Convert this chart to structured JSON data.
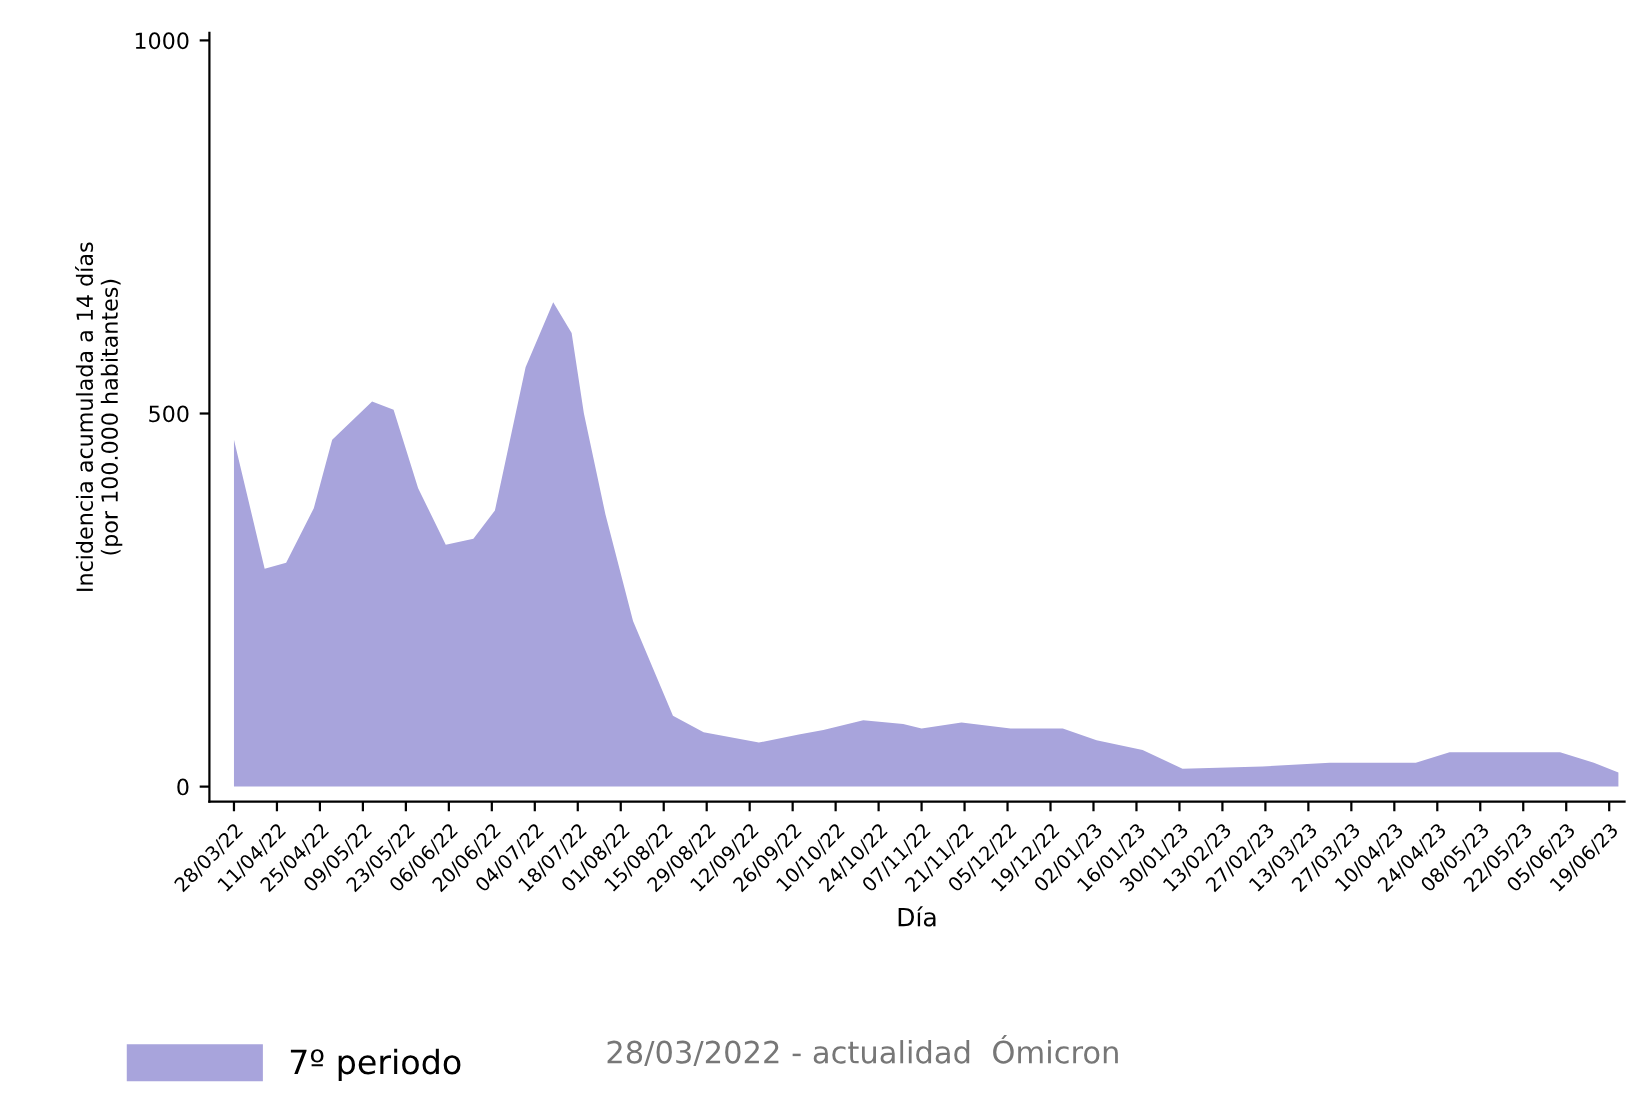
{
  "chart_data": {
    "type": "area",
    "xlabel": "Día",
    "ylabel": "Incidencia acumulada a 14 días\n(por 100.000 habitantes)",
    "x": [
      "2022-03-28",
      "2022-04-07",
      "2022-04-14",
      "2022-04-23",
      "2022-04-29",
      "2022-05-12",
      "2022-05-19",
      "2022-05-27",
      "2022-06-05",
      "2022-06-14",
      "2022-06-21",
      "2022-07-01",
      "2022-07-10",
      "2022-07-16",
      "2022-07-20",
      "2022-07-27",
      "2022-08-05",
      "2022-08-18",
      "2022-08-28",
      "2022-09-15",
      "2022-09-28",
      "2022-10-06",
      "2022-10-19",
      "2022-11-01",
      "2022-11-07",
      "2022-11-20",
      "2022-12-06",
      "2022-12-23",
      "2023-01-03",
      "2023-01-18",
      "2023-01-31",
      "2023-02-26",
      "2023-03-20",
      "2023-04-17",
      "2023-04-28",
      "2023-06-03",
      "2023-06-14",
      "2023-06-22"
    ],
    "series": [
      {
        "name": "7º periodo",
        "color": "#a8a4dc",
        "values": [
          465,
          292,
          300,
          373,
          465,
          516,
          505,
          400,
          324,
          332,
          370,
          562,
          649,
          608,
          500,
          365,
          222,
          95,
          73,
          59,
          70,
          76,
          89,
          84,
          78,
          86,
          78,
          78,
          62,
          49,
          24,
          27,
          32,
          32,
          46,
          46,
          32,
          19
        ]
      }
    ],
    "annotations": [
      "28/03/2022 - actualidad  Ómicron"
    ],
    "xlim": [
      "2022-03-20",
      "2023-06-24"
    ],
    "xticks": [
      {
        "value": "2022-03-28",
        "label": "28/03/22"
      },
      {
        "value": "2022-04-11",
        "label": "11/04/22"
      },
      {
        "value": "2022-04-25",
        "label": "25/04/22"
      },
      {
        "value": "2022-05-09",
        "label": "09/05/22"
      },
      {
        "value": "2022-05-23",
        "label": "23/05/22"
      },
      {
        "value": "2022-06-06",
        "label": "06/06/22"
      },
      {
        "value": "2022-06-20",
        "label": "20/06/22"
      },
      {
        "value": "2022-07-04",
        "label": "04/07/22"
      },
      {
        "value": "2022-07-18",
        "label": "18/07/22"
      },
      {
        "value": "2022-08-01",
        "label": "01/08/22"
      },
      {
        "value": "2022-08-15",
        "label": "15/08/22"
      },
      {
        "value": "2022-08-29",
        "label": "29/08/22"
      },
      {
        "value": "2022-09-12",
        "label": "12/09/22"
      },
      {
        "value": "2022-09-26",
        "label": "26/09/22"
      },
      {
        "value": "2022-10-10",
        "label": "10/10/22"
      },
      {
        "value": "2022-10-24",
        "label": "24/10/22"
      },
      {
        "value": "2022-11-07",
        "label": "07/11/22"
      },
      {
        "value": "2022-11-21",
        "label": "21/11/22"
      },
      {
        "value": "2022-12-05",
        "label": "05/12/22"
      },
      {
        "value": "2022-12-19",
        "label": "19/12/22"
      },
      {
        "value": "2023-01-02",
        "label": "02/01/23"
      },
      {
        "value": "2023-01-16",
        "label": "16/01/23"
      },
      {
        "value": "2023-01-30",
        "label": "30/01/23"
      },
      {
        "value": "2023-02-13",
        "label": "13/02/23"
      },
      {
        "value": "2023-02-27",
        "label": "27/02/23"
      },
      {
        "value": "2023-03-13",
        "label": "13/03/23"
      },
      {
        "value": "2023-03-27",
        "label": "27/03/23"
      },
      {
        "value": "2023-04-10",
        "label": "10/04/23"
      },
      {
        "value": "2023-04-24",
        "label": "24/04/23"
      },
      {
        "value": "2023-05-08",
        "label": "08/05/23"
      },
      {
        "value": "2023-05-22",
        "label": "22/05/23"
      },
      {
        "value": "2023-06-05",
        "label": "05/06/23"
      },
      {
        "value": "2023-06-19",
        "label": "19/06/23"
      }
    ],
    "ylim": [
      -20,
      1010
    ],
    "yticks": [
      0,
      500,
      1000
    ],
    "grid": false,
    "legend": "bottom"
  }
}
